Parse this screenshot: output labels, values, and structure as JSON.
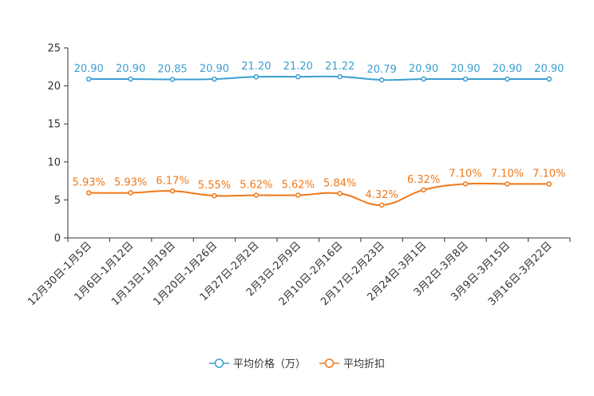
{
  "chart_data": {
    "type": "line",
    "categories": [
      "12月30日-1月5日",
      "1月6日-1月12日",
      "1月13日-1月19日",
      "1月20日-1月26日",
      "1月27日-2月2日",
      "2月3日-2月9日",
      "2月10日-2月16日",
      "2月17日-2月23日",
      "2月24日-3月1日",
      "3月2日-3月8日",
      "3月9日-3月15日",
      "3月16日-3月22日"
    ],
    "ylim": [
      0,
      25
    ],
    "yticks": [
      0,
      5,
      10,
      15,
      20,
      25
    ],
    "series": [
      {
        "name": "平均价格（万）",
        "color": "#3a9fd0",
        "values": [
          20.9,
          20.9,
          20.85,
          20.9,
          21.2,
          21.2,
          21.22,
          20.79,
          20.9,
          20.9,
          20.9,
          20.9
        ],
        "labels": [
          "20.90",
          "20.90",
          "20.85",
          "20.90",
          "21.20",
          "21.20",
          "21.22",
          "20.79",
          "20.90",
          "20.90",
          "20.90",
          "20.90"
        ]
      },
      {
        "name": "平均折扣",
        "color": "#f07818",
        "values": [
          5.93,
          5.93,
          6.17,
          5.55,
          5.62,
          5.62,
          5.84,
          4.32,
          6.32,
          7.1,
          7.1,
          7.1
        ],
        "labels": [
          "5.93%",
          "5.93%",
          "6.17%",
          "5.55%",
          "5.62%",
          "5.62%",
          "5.84%",
          "4.32%",
          "6.32%",
          "7.10%",
          "7.10%",
          "7.10%"
        ]
      }
    ]
  }
}
